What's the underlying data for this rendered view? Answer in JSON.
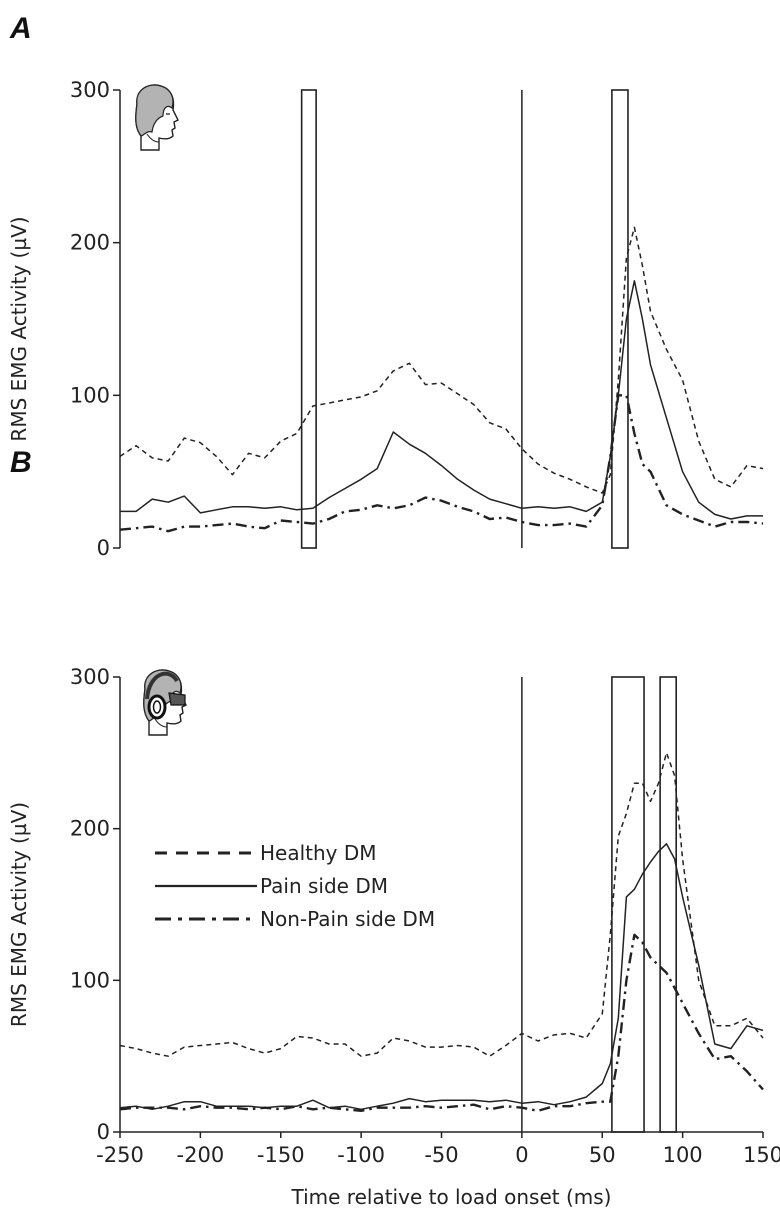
{
  "chart_data": [
    {
      "panel": "A",
      "type": "line",
      "xlabel": "",
      "ylabel": "RMS EMG Activity (µV)",
      "xlim": [
        -250,
        150
      ],
      "ylim": [
        0,
        300
      ],
      "yticks": [
        0,
        100,
        200,
        300
      ],
      "xticks": [],
      "icon": "head-profile-icon",
      "onset_line_x": 0,
      "windows": [
        {
          "x0": -137,
          "x1": -128,
          "y0": 0,
          "y1": 300
        },
        {
          "x0": 56,
          "x1": 66,
          "y0": 0,
          "y1": 300
        }
      ],
      "series": [
        {
          "key": "healthy",
          "style": "dashed",
          "x": [
            -250,
            -240,
            -230,
            -220,
            -210,
            -200,
            -190,
            -180,
            -170,
            -160,
            -150,
            -140,
            -130,
            -120,
            -110,
            -100,
            -90,
            -80,
            -70,
            -60,
            -50,
            -40,
            -30,
            -20,
            -10,
            0,
            10,
            20,
            30,
            40,
            50,
            55,
            60,
            65,
            70,
            75,
            80,
            90,
            100,
            110,
            120,
            130,
            140,
            150
          ],
          "y": [
            60,
            67,
            59,
            57,
            72,
            69,
            60,
            48,
            62,
            59,
            70,
            75,
            93,
            95,
            97,
            99,
            103,
            116,
            121,
            107,
            108,
            101,
            94,
            82,
            78,
            65,
            55,
            49,
            45,
            40,
            36,
            48,
            110,
            190,
            210,
            185,
            155,
            130,
            110,
            70,
            45,
            40,
            54,
            52
          ]
        },
        {
          "key": "pain",
          "style": "solid",
          "x": [
            -250,
            -240,
            -230,
            -220,
            -210,
            -200,
            -190,
            -180,
            -170,
            -160,
            -150,
            -140,
            -130,
            -120,
            -110,
            -100,
            -90,
            -80,
            -70,
            -60,
            -50,
            -40,
            -30,
            -20,
            -10,
            0,
            10,
            20,
            30,
            40,
            50,
            55,
            60,
            65,
            70,
            75,
            80,
            90,
            100,
            110,
            120,
            130,
            140,
            150
          ],
          "y": [
            24,
            24,
            32,
            30,
            34,
            23,
            25,
            27,
            27,
            26,
            27,
            25,
            26,
            33,
            39,
            45,
            52,
            76,
            68,
            62,
            54,
            45,
            38,
            32,
            29,
            26,
            27,
            26,
            27,
            24,
            30,
            60,
            100,
            150,
            175,
            150,
            120,
            85,
            50,
            30,
            22,
            19,
            21,
            21
          ]
        },
        {
          "key": "nonpain",
          "style": "dashdot",
          "x": [
            -250,
            -240,
            -230,
            -220,
            -210,
            -200,
            -190,
            -180,
            -170,
            -160,
            -150,
            -140,
            -130,
            -120,
            -110,
            -100,
            -90,
            -80,
            -70,
            -60,
            -50,
            -40,
            -30,
            -20,
            -10,
            0,
            10,
            20,
            30,
            40,
            50,
            55,
            60,
            65,
            70,
            75,
            80,
            90,
            100,
            110,
            120,
            130,
            140,
            150
          ],
          "y": [
            12,
            13,
            14,
            11,
            14,
            14,
            15,
            16,
            14,
            13,
            18,
            17,
            16,
            19,
            24,
            25,
            28,
            26,
            28,
            33,
            31,
            27,
            24,
            19,
            20,
            17,
            15,
            15,
            16,
            14,
            28,
            60,
            100,
            100,
            75,
            55,
            50,
            28,
            22,
            18,
            14,
            17,
            17,
            16
          ]
        }
      ]
    },
    {
      "panel": "B",
      "type": "line",
      "xlabel": "Time relative to load onset (ms)",
      "ylabel": "RMS EMG Activity (µV)",
      "xlim": [
        -250,
        150
      ],
      "ylim": [
        0,
        300
      ],
      "yticks": [
        0,
        100,
        200,
        300
      ],
      "xticks": [
        -250,
        -200,
        -150,
        -100,
        -50,
        0,
        50,
        100,
        150
      ],
      "icon": "head-with-headphones-icon",
      "onset_line_x": 0,
      "windows": [
        {
          "x0": 56,
          "x1": 76,
          "y0": 0,
          "y1": 300
        },
        {
          "x0": 86,
          "x1": 96,
          "y0": 0,
          "y1": 300
        }
      ],
      "series": [
        {
          "key": "healthy",
          "style": "dashed",
          "x": [
            -250,
            -240,
            -230,
            -220,
            -210,
            -200,
            -190,
            -180,
            -170,
            -160,
            -150,
            -140,
            -130,
            -120,
            -110,
            -100,
            -90,
            -80,
            -70,
            -60,
            -50,
            -40,
            -30,
            -20,
            -10,
            0,
            10,
            20,
            30,
            40,
            50,
            55,
            60,
            65,
            70,
            75,
            80,
            85,
            90,
            95,
            100,
            110,
            120,
            130,
            140,
            150
          ],
          "y": [
            57,
            55,
            52,
            50,
            56,
            57,
            58,
            59,
            55,
            52,
            55,
            63,
            62,
            58,
            58,
            50,
            52,
            62,
            60,
            56,
            56,
            57,
            56,
            50,
            57,
            65,
            60,
            64,
            65,
            62,
            78,
            130,
            195,
            210,
            230,
            230,
            218,
            230,
            250,
            235,
            180,
            100,
            70,
            70,
            75,
            62
          ]
        },
        {
          "key": "pain",
          "style": "solid",
          "x": [
            -250,
            -240,
            -230,
            -220,
            -210,
            -200,
            -190,
            -180,
            -170,
            -160,
            -150,
            -140,
            -130,
            -120,
            -110,
            -100,
            -90,
            -80,
            -70,
            -60,
            -50,
            -40,
            -30,
            -20,
            -10,
            0,
            10,
            20,
            30,
            40,
            50,
            55,
            60,
            65,
            70,
            75,
            80,
            85,
            90,
            95,
            100,
            110,
            120,
            130,
            140,
            150
          ],
          "y": [
            16,
            17,
            15,
            17,
            20,
            20,
            17,
            17,
            17,
            16,
            17,
            17,
            21,
            16,
            17,
            15,
            17,
            19,
            22,
            20,
            21,
            21,
            21,
            20,
            21,
            19,
            20,
            18,
            20,
            23,
            32,
            45,
            75,
            155,
            160,
            170,
            178,
            185,
            190,
            180,
            155,
            110,
            58,
            55,
            70,
            67
          ]
        },
        {
          "key": "nonpain",
          "style": "dashdot",
          "x": [
            -250,
            -240,
            -230,
            -220,
            -210,
            -200,
            -190,
            -180,
            -170,
            -160,
            -150,
            -140,
            -130,
            -120,
            -110,
            -100,
            -90,
            -80,
            -70,
            -60,
            -50,
            -40,
            -30,
            -20,
            -10,
            0,
            10,
            20,
            30,
            40,
            50,
            55,
            60,
            65,
            70,
            75,
            80,
            85,
            90,
            95,
            100,
            110,
            120,
            130,
            140,
            150
          ],
          "y": [
            15,
            16,
            16,
            16,
            15,
            17,
            16,
            16,
            15,
            16,
            15,
            17,
            15,
            16,
            15,
            14,
            16,
            16,
            16,
            17,
            16,
            17,
            18,
            15,
            17,
            16,
            14,
            17,
            17,
            19,
            20,
            20,
            50,
            100,
            130,
            125,
            115,
            110,
            105,
            95,
            85,
            65,
            48,
            50,
            40,
            28
          ]
        }
      ]
    }
  ],
  "legend": {
    "placement": "inside-panel-B-left",
    "entries": [
      {
        "key": "healthy",
        "label": "Healthy DM",
        "style": "dashed"
      },
      {
        "key": "pain",
        "label": "Pain side DM",
        "style": "solid"
      },
      {
        "key": "nonpain",
        "label": "Non-Pain side DM",
        "style": "dashdot"
      }
    ]
  },
  "colors": {
    "line": "#222222",
    "icon_fill": "#b3b3b3",
    "background": "#ffffff"
  }
}
